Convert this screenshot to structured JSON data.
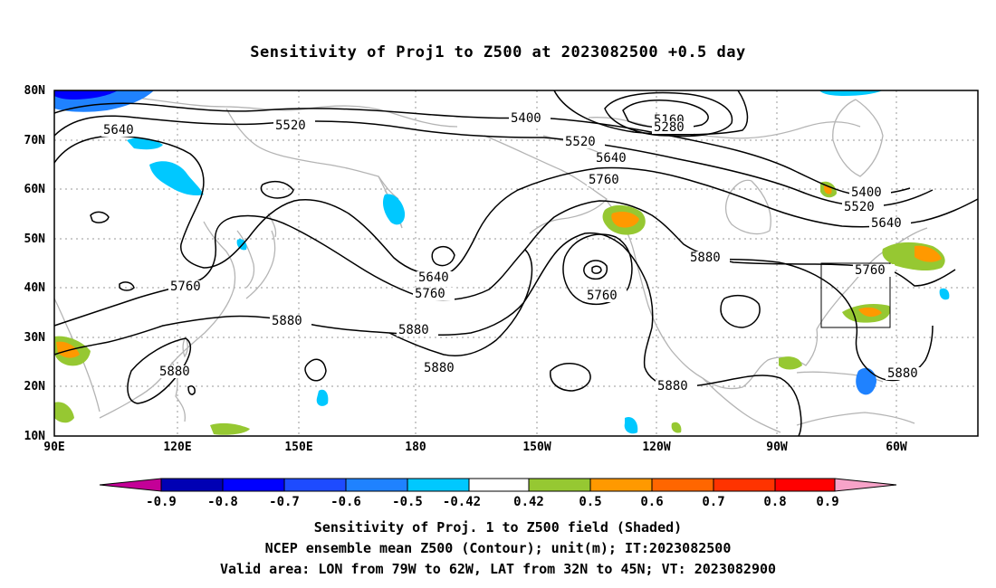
{
  "title": "Sensitivity of Proj1 to Z500 at 2023082500 +0.5 day",
  "map": {
    "lon_labels": [
      "90E",
      "120E",
      "150E",
      "180",
      "150W",
      "120W",
      "90W",
      "60W"
    ],
    "lat_labels": [
      "80N",
      "70N",
      "60N",
      "50N",
      "40N",
      "30N",
      "20N",
      "10N"
    ],
    "contour_labels": [
      "5160",
      "5280",
      "5400",
      "5400",
      "5520",
      "5520",
      "5520",
      "5640",
      "5640",
      "5640",
      "5640",
      "5760",
      "5760",
      "5760",
      "5760",
      "5760",
      "5880",
      "5880",
      "5880",
      "5880",
      "5880",
      "5880"
    ],
    "valid_box": {
      "lon": [
        -79,
        -62
      ],
      "lat": [
        32,
        45
      ]
    },
    "colors": {
      "land_outline": "#b4b4b4",
      "contour": "#000000",
      "grid": "#9a9a9a"
    }
  },
  "colorbar": {
    "labels": [
      "-0.9",
      "-0.8",
      "-0.7",
      "-0.6",
      "-0.5",
      "-0.42",
      "0.42",
      "0.5",
      "0.6",
      "0.7",
      "0.8",
      "0.9"
    ],
    "colors": [
      "#c40097",
      "#0000b4",
      "#0000ff",
      "#1e4bff",
      "#1f82ff",
      "#00c8ff",
      "#ffffff",
      "#96c832",
      "#ff9900",
      "#ff6600",
      "#ff3300",
      "#ff0000",
      "#f7a3c8"
    ]
  },
  "captions": {
    "line1": "Sensitivity of Proj. 1 to Z500 field (Shaded)",
    "line2": "NCEP ensemble mean Z500 (Contour); unit(m); IT:2023082500",
    "line3": "Valid area: LON from 79W to 62W, LAT from 32N to 45N; VT: 2023082900"
  }
}
